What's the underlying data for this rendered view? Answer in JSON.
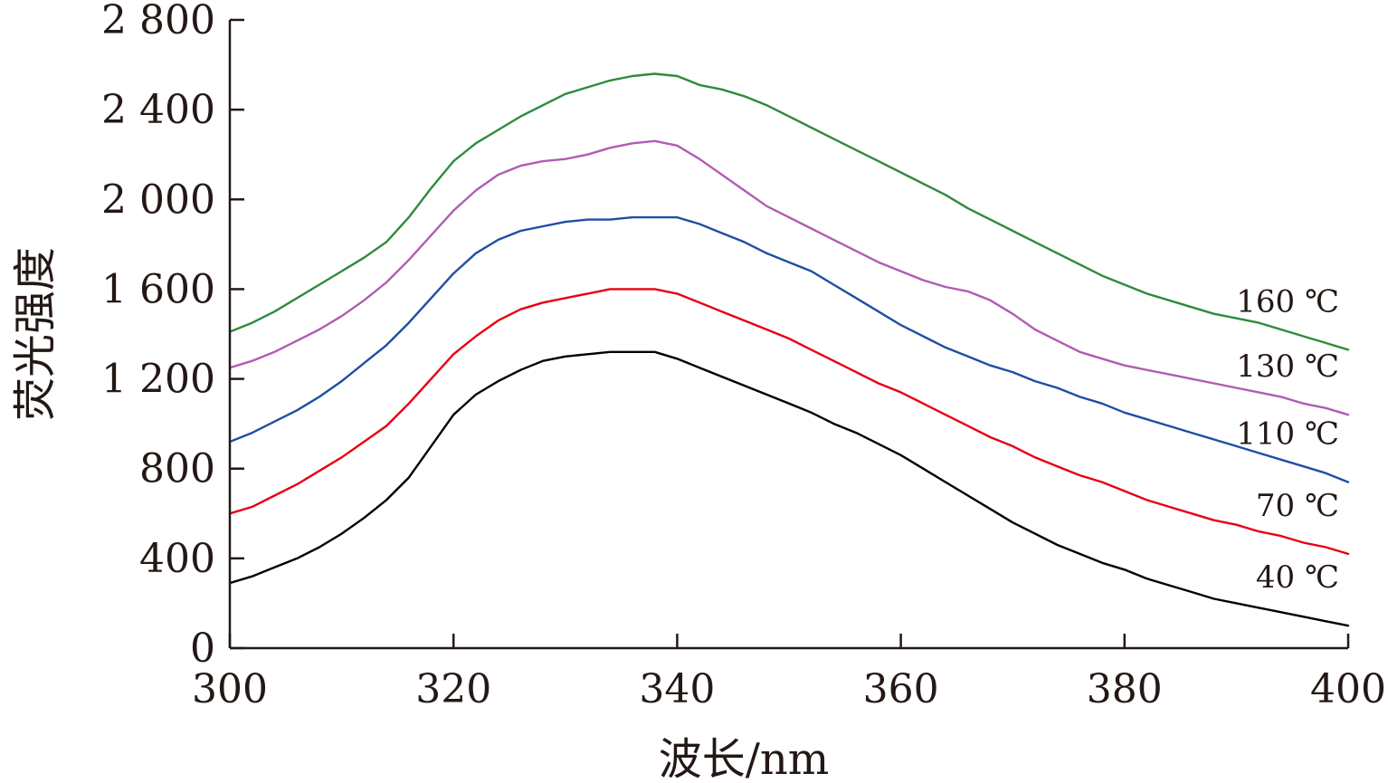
{
  "chart_data": {
    "type": "line",
    "title": "",
    "xlabel": "波长/nm",
    "ylabel": "荧光强度",
    "xlim": [
      300,
      400
    ],
    "ylim": [
      0,
      2800
    ],
    "xticks": [
      300,
      320,
      340,
      360,
      380,
      400
    ],
    "xtick_labels": [
      "300",
      "320",
      "340",
      "360",
      "380",
      "400"
    ],
    "yticks": [
      0,
      400,
      800,
      1200,
      1600,
      2000,
      2400,
      2800
    ],
    "ytick_labels": [
      "0",
      "400",
      "800",
      "1 200",
      "1 600",
      "2 000",
      "2 400",
      "2 800"
    ],
    "grid": false,
    "legend": "inline labels at right end of each curve",
    "x": [
      300,
      302,
      304,
      306,
      308,
      310,
      312,
      314,
      316,
      318,
      320,
      322,
      324,
      326,
      328,
      330,
      332,
      334,
      336,
      338,
      340,
      342,
      344,
      346,
      348,
      350,
      352,
      354,
      356,
      358,
      360,
      362,
      364,
      366,
      368,
      370,
      372,
      374,
      376,
      378,
      380,
      382,
      384,
      386,
      388,
      390,
      392,
      394,
      396,
      398,
      400
    ],
    "series": [
      {
        "name": "40 ℃",
        "color": "#000000",
        "values": [
          290,
          320,
          360,
          400,
          450,
          510,
          580,
          660,
          760,
          900,
          1040,
          1130,
          1190,
          1240,
          1280,
          1300,
          1310,
          1320,
          1320,
          1320,
          1290,
          1250,
          1210,
          1170,
          1130,
          1090,
          1050,
          1000,
          960,
          910,
          860,
          800,
          740,
          680,
          620,
          560,
          510,
          460,
          420,
          380,
          350,
          310,
          280,
          250,
          220,
          200,
          180,
          160,
          140,
          120,
          100
        ]
      },
      {
        "name": "70 ℃",
        "color": "#e60012",
        "values": [
          600,
          630,
          680,
          730,
          790,
          850,
          920,
          990,
          1090,
          1200,
          1310,
          1390,
          1460,
          1510,
          1540,
          1560,
          1580,
          1600,
          1600,
          1600,
          1580,
          1540,
          1500,
          1460,
          1420,
          1380,
          1330,
          1280,
          1230,
          1180,
          1140,
          1090,
          1040,
          990,
          940,
          900,
          850,
          810,
          770,
          740,
          700,
          660,
          630,
          600,
          570,
          550,
          520,
          500,
          470,
          450,
          420
        ]
      },
      {
        "name": "110 ℃",
        "color": "#1d4fa3",
        "values": [
          920,
          960,
          1010,
          1060,
          1120,
          1190,
          1270,
          1350,
          1450,
          1560,
          1670,
          1760,
          1820,
          1860,
          1880,
          1900,
          1910,
          1910,
          1920,
          1920,
          1920,
          1890,
          1850,
          1810,
          1760,
          1720,
          1680,
          1620,
          1560,
          1500,
          1440,
          1390,
          1340,
          1300,
          1260,
          1230,
          1190,
          1160,
          1120,
          1090,
          1050,
          1020,
          990,
          960,
          930,
          900,
          870,
          840,
          810,
          780,
          740
        ]
      },
      {
        "name": "130 ℃",
        "color": "#b05cb4",
        "values": [
          1250,
          1280,
          1320,
          1370,
          1420,
          1480,
          1550,
          1630,
          1730,
          1840,
          1950,
          2040,
          2110,
          2150,
          2170,
          2180,
          2200,
          2230,
          2250,
          2260,
          2240,
          2180,
          2110,
          2040,
          1970,
          1920,
          1870,
          1820,
          1770,
          1720,
          1680,
          1640,
          1610,
          1590,
          1550,
          1490,
          1420,
          1370,
          1320,
          1290,
          1260,
          1240,
          1220,
          1200,
          1180,
          1160,
          1140,
          1120,
          1090,
          1070,
          1040
        ]
      },
      {
        "name": "160 ℃",
        "color": "#2e8b3e",
        "values": [
          1410,
          1450,
          1500,
          1560,
          1620,
          1680,
          1740,
          1810,
          1920,
          2050,
          2170,
          2250,
          2310,
          2370,
          2420,
          2470,
          2500,
          2530,
          2550,
          2560,
          2550,
          2510,
          2490,
          2460,
          2420,
          2370,
          2320,
          2270,
          2220,
          2170,
          2120,
          2070,
          2020,
          1960,
          1910,
          1860,
          1810,
          1760,
          1710,
          1660,
          1620,
          1580,
          1550,
          1520,
          1490,
          1470,
          1450,
          1420,
          1390,
          1360,
          1330
        ]
      }
    ]
  }
}
